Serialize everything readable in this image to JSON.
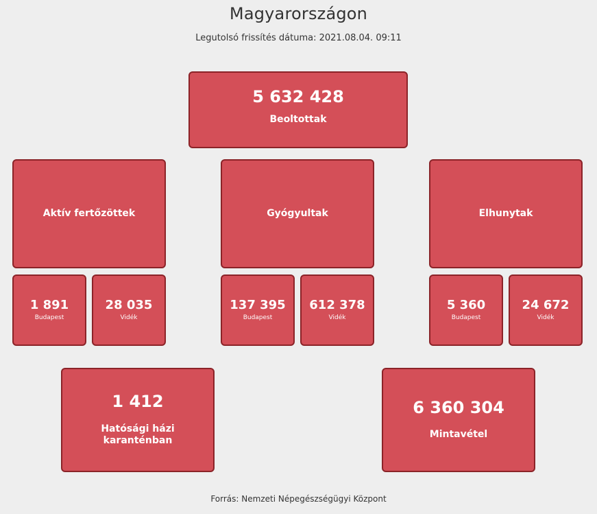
{
  "header": {
    "title": "Magyarországon",
    "updated": "Legutolsó frissítés dátuma: 2021.08.04. 09:11"
  },
  "vaccinated": {
    "value": "5 632 428",
    "label": "Beoltottak"
  },
  "categories": [
    {
      "label": "Aktív fertőzöttek",
      "budapest": {
        "value": "1 891",
        "label": "Budapest"
      },
      "videk": {
        "value": "28 035",
        "label": "Vidék"
      }
    },
    {
      "label": "Gyógyultak",
      "budapest": {
        "value": "137 395",
        "label": "Budapest"
      },
      "videk": {
        "value": "612 378",
        "label": "Vidék"
      }
    },
    {
      "label": "Elhunytak",
      "budapest": {
        "value": "5 360",
        "label": "Budapest"
      },
      "videk": {
        "value": "24 672",
        "label": "Vidék"
      }
    }
  ],
  "quarantine": {
    "value": "1 412",
    "label": "Hatósági házi karanténban"
  },
  "samples": {
    "value": "6 360 304",
    "label": "Mintavétel"
  },
  "footer": {
    "source": "Forrás: Nemzeti Népegészségügyi Központ"
  },
  "colors": {
    "box_fill": "#d44f58",
    "box_border": "#8b2328",
    "background": "#eeeeee"
  }
}
